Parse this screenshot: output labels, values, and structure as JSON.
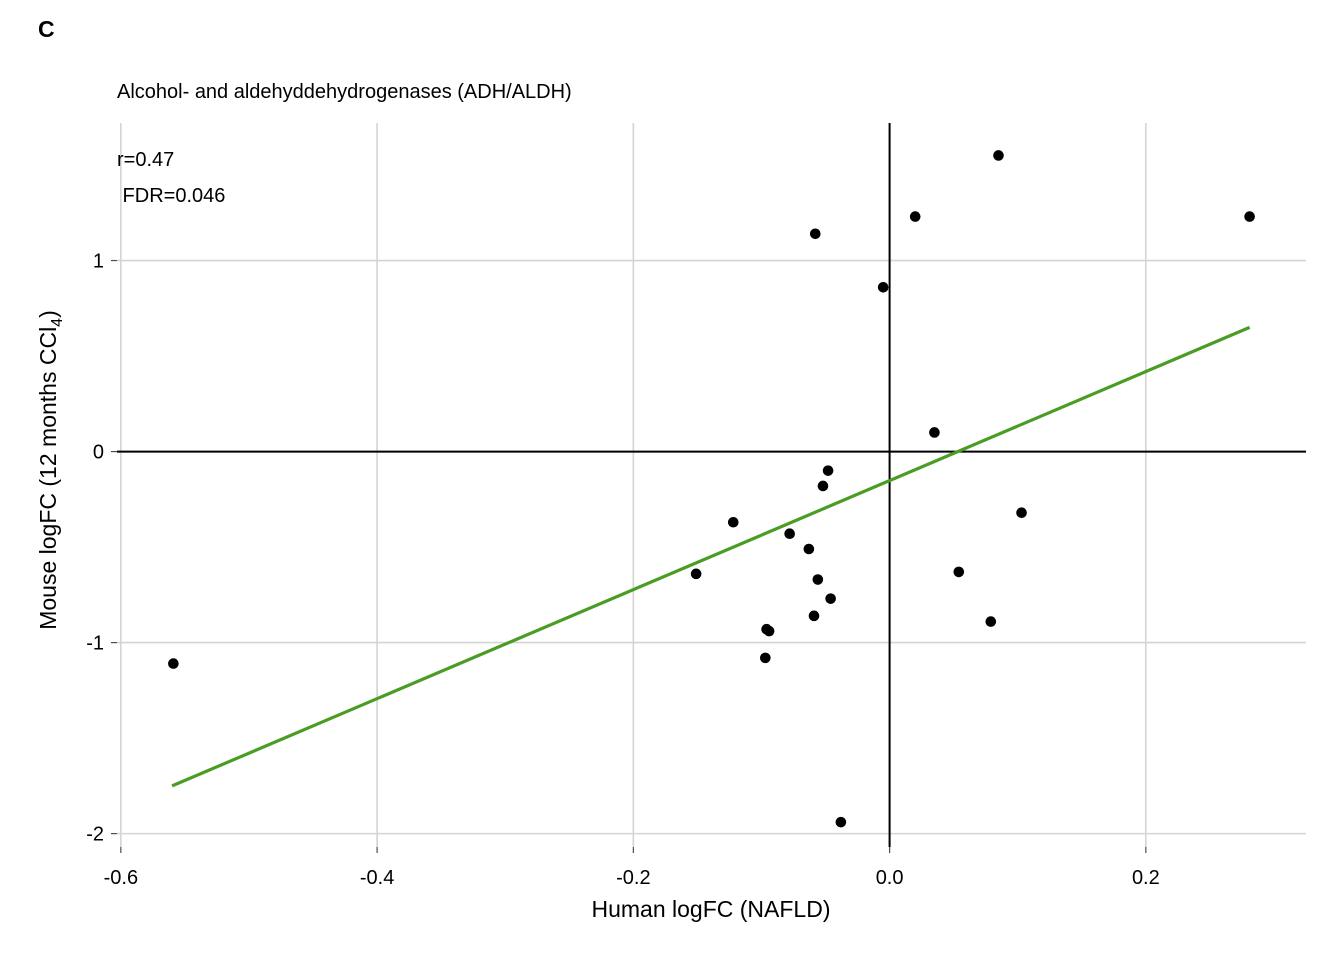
{
  "panel_label": "C",
  "chart_data": {
    "type": "scatter",
    "title": "Alcohol- and aldehyddehydrogenases (ADH/ALDH)",
    "xlabel": "Human logFC (NAFLD)",
    "ylabel_parts": [
      "Mouse logFC (12 months CCl",
      "4",
      ")"
    ],
    "annotation": [
      "r=0.47",
      " FDR=0.046"
    ],
    "xlim": [
      -0.603,
      0.325
    ],
    "ylim": [
      -2.07,
      1.72
    ],
    "x_ticks": [
      -0.6,
      -0.4,
      -0.2,
      0.0,
      0.2
    ],
    "x_tick_labels": [
      "-0.6",
      "-0.4",
      "-0.2",
      "0.0",
      "0.2"
    ],
    "y_ticks": [
      -2,
      -1,
      0,
      1
    ],
    "y_tick_labels": [
      "-2",
      "-1",
      "0",
      "1"
    ],
    "grid": true,
    "reference_lines": {
      "x": 0,
      "y": 0
    },
    "trend_color": "#4a9d24",
    "point_color": "#000000",
    "trendline": {
      "x": [
        -0.56,
        0.281
      ],
      "y": [
        -1.75,
        0.65
      ]
    },
    "points": [
      {
        "x": -0.559,
        "y": -1.11
      },
      {
        "x": -0.151,
        "y": -0.64
      },
      {
        "x": -0.122,
        "y": -0.37
      },
      {
        "x": -0.097,
        "y": -1.08
      },
      {
        "x": -0.096,
        "y": -0.93
      },
      {
        "x": -0.094,
        "y": -0.94
      },
      {
        "x": -0.078,
        "y": -0.43
      },
      {
        "x": -0.063,
        "y": -0.51
      },
      {
        "x": -0.059,
        "y": -0.86
      },
      {
        "x": -0.058,
        "y": 1.14
      },
      {
        "x": -0.056,
        "y": -0.67
      },
      {
        "x": -0.052,
        "y": -0.18
      },
      {
        "x": -0.048,
        "y": -0.1
      },
      {
        "x": -0.046,
        "y": -0.77
      },
      {
        "x": -0.038,
        "y": -1.94
      },
      {
        "x": -0.005,
        "y": 0.86
      },
      {
        "x": 0.02,
        "y": 1.23
      },
      {
        "x": 0.035,
        "y": 0.1
      },
      {
        "x": 0.054,
        "y": -0.63
      },
      {
        "x": 0.079,
        "y": -0.89
      },
      {
        "x": 0.085,
        "y": 1.55
      },
      {
        "x": 0.103,
        "y": -0.32
      },
      {
        "x": 0.281,
        "y": 1.23
      }
    ]
  }
}
